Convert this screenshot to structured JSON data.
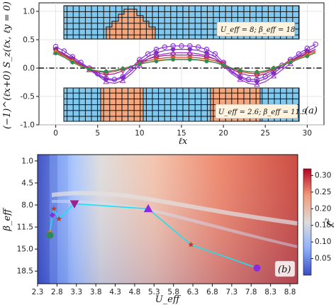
{
  "chart_data": [
    {
      "type": "line",
      "panel_label": "(a)",
      "xlabel": "ℓx",
      "ylabel": "(−1)^(ℓx+0) S_z(ℓx, ℓy = 0)",
      "xlim": [
        -2,
        32
      ],
      "ylim": [
        -1.0,
        1.15
      ],
      "xticks": [
        0,
        5,
        10,
        15,
        20,
        25,
        30
      ],
      "yticks": [
        -1.0,
        -0.5,
        0.0,
        0.5,
        1.0
      ],
      "grid": true,
      "dashed_zero_line": true,
      "insets": [
        {
          "label": "U_eff = 8; β_eff = 18",
          "cols": 30,
          "rows": 4,
          "orange_blocks": [
            [
              7,
              14,
              0.5,
              3
            ]
          ]
        },
        {
          "label": "U_eff = 2.6; β_eff = 11.9",
          "cols": 30,
          "rows": 4,
          "orange_blocks": [
            [
              5,
              11,
              0,
              4
            ],
            [
              17,
              24,
              0,
              4
            ]
          ]
        }
      ],
      "x": [
        0,
        1,
        2,
        3,
        4,
        5,
        6,
        7,
        8,
        9,
        10,
        11,
        12,
        13,
        14,
        15,
        16,
        17,
        18,
        19,
        20,
        21,
        22,
        23,
        24,
        25,
        26,
        27,
        28,
        29,
        30,
        31
      ],
      "series": [
        {
          "color": "#8a2be2",
          "marker": "circle",
          "values": [
            0.38,
            0.3,
            0.2,
            0.1,
            0.0,
            -0.1,
            -0.18,
            -0.2,
            -0.15,
            0.0,
            0.15,
            0.25,
            0.33,
            0.37,
            0.39,
            0.39,
            0.39,
            0.37,
            0.33,
            0.25,
            0.1,
            -0.05,
            -0.15,
            -0.2,
            -0.2,
            -0.15,
            -0.05,
            0.05,
            0.15,
            0.25,
            0.35,
            0.42
          ]
        },
        {
          "color": "#7b2fbe",
          "marker": "diamond",
          "values": [
            0.33,
            0.25,
            0.17,
            0.08,
            -0.02,
            -0.12,
            -0.2,
            -0.22,
            -0.17,
            -0.05,
            0.1,
            0.2,
            0.27,
            0.31,
            0.33,
            0.33,
            0.33,
            0.31,
            0.27,
            0.2,
            0.07,
            -0.07,
            -0.17,
            -0.23,
            -0.24,
            -0.19,
            -0.09,
            0.02,
            0.12,
            0.22,
            0.3,
            0.37
          ]
        },
        {
          "color": "#9933cc",
          "marker": "triangle-up",
          "values": [
            0.28,
            0.22,
            0.14,
            0.06,
            -0.03,
            -0.13,
            -0.24,
            -0.27,
            -0.22,
            -0.1,
            0.05,
            0.16,
            0.22,
            0.25,
            0.27,
            0.27,
            0.27,
            0.25,
            0.22,
            0.16,
            0.04,
            -0.1,
            -0.2,
            -0.27,
            -0.29,
            -0.24,
            -0.14,
            -0.03,
            0.08,
            0.18,
            0.26,
            0.33
          ]
        },
        {
          "color": "#a0208f",
          "marker": "triangle-down",
          "values": [
            0.32,
            0.24,
            0.15,
            0.06,
            -0.02,
            -0.08,
            -0.12,
            -0.1,
            -0.05,
            0.02,
            0.1,
            0.16,
            0.2,
            0.22,
            0.23,
            0.23,
            0.23,
            0.22,
            0.2,
            0.16,
            0.08,
            -0.02,
            -0.09,
            -0.13,
            -0.14,
            -0.1,
            -0.03,
            0.05,
            0.12,
            0.2,
            0.27,
            0.33
          ]
        },
        {
          "color": "#c0392b",
          "marker": "star",
          "values": [
            0.3,
            0.22,
            0.13,
            0.05,
            -0.02,
            -0.06,
            -0.08,
            -0.06,
            -0.02,
            0.03,
            0.09,
            0.13,
            0.16,
            0.18,
            0.19,
            0.19,
            0.19,
            0.18,
            0.16,
            0.13,
            0.07,
            0.0,
            -0.06,
            -0.09,
            -0.1,
            -0.07,
            -0.01,
            0.06,
            0.12,
            0.18,
            0.25,
            0.3
          ]
        },
        {
          "color": "#e67e22",
          "marker": "diamond",
          "values": [
            0.28,
            0.2,
            0.11,
            0.04,
            -0.02,
            -0.05,
            -0.06,
            -0.04,
            -0.01,
            0.03,
            0.07,
            0.1,
            0.13,
            0.15,
            0.16,
            0.16,
            0.16,
            0.15,
            0.13,
            0.1,
            0.05,
            0.0,
            -0.04,
            -0.07,
            -0.07,
            -0.05,
            0.0,
            0.06,
            0.11,
            0.17,
            0.22,
            0.28
          ]
        },
        {
          "color": "#2e8b57",
          "marker": "circle-small",
          "values": [
            0.26,
            0.19,
            0.1,
            0.03,
            -0.02,
            -0.05,
            -0.06,
            -0.04,
            -0.01,
            0.03,
            0.07,
            0.1,
            0.12,
            0.14,
            0.15,
            0.15,
            0.15,
            0.14,
            0.12,
            0.1,
            0.05,
            0.0,
            -0.04,
            -0.06,
            -0.07,
            -0.05,
            0.0,
            0.05,
            0.1,
            0.16,
            0.21,
            0.27
          ]
        }
      ]
    },
    {
      "type": "heatmap",
      "panel_label": "(b)",
      "xlabel": "U_eff",
      "ylabel": "β_eff",
      "xticks": [
        "2.3",
        "2.8",
        "3.3",
        "3.8",
        "4.3",
        "4.8",
        "5.3",
        "5.8",
        "6.3",
        "6.8",
        "7.3",
        "7.8",
        "8.3",
        "8.8"
      ],
      "yticks": [
        "1.0",
        "4.5",
        "8.0",
        "11.5",
        "15.0",
        "18.5"
      ],
      "xlim": [
        2.3,
        9.0
      ],
      "ylim": [
        20.5,
        0.0
      ],
      "colorbar": {
        "label": "χ²",
        "ticks": [
          "0.30",
          "0.25",
          "0.20",
          "0.15",
          "0.10",
          "0.05"
        ],
        "range": [
          0.0,
          0.32
        ],
        "colormap": "coolwarm"
      },
      "path": [
        {
          "x": 7.95,
          "y": 18.0,
          "marker": "circle",
          "color": "#8a2be2"
        },
        {
          "x": 6.25,
          "y": 14.3,
          "marker": "star",
          "color": "#c0392b"
        },
        {
          "x": 5.15,
          "y": 8.6,
          "marker": "triangle-up",
          "color": "#8a2be2"
        },
        {
          "x": 3.25,
          "y": 7.8,
          "marker": "triangle-down",
          "color": "#a0208f"
        },
        {
          "x": 2.85,
          "y": 10.2,
          "marker": "star",
          "color": "#c0392b"
        },
        {
          "x": 2.72,
          "y": 8.6,
          "marker": "star",
          "color": "#c0392b"
        },
        {
          "x": 2.68,
          "y": 9.6,
          "marker": "diamond",
          "color": "#8a2be2"
        },
        {
          "x": 2.62,
          "y": 12.4,
          "marker": "diamond",
          "color": "#e67e22"
        },
        {
          "x": 2.62,
          "y": 12.8,
          "marker": "circle",
          "color": "#2e8b57"
        }
      ]
    }
  ]
}
